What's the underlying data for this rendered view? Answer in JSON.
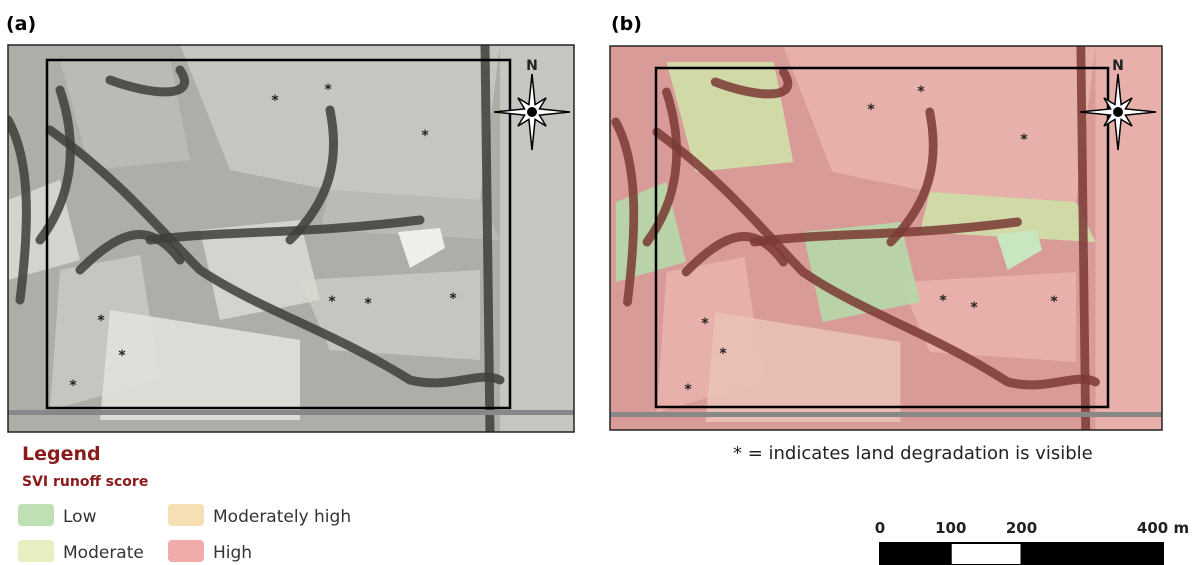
{
  "panels": [
    {
      "label": "(a)"
    },
    {
      "label": "(b)"
    }
  ],
  "north_label": "N",
  "degradation_marker": "*",
  "legend": {
    "title": "Legend",
    "subtitle": "SVI runoff score",
    "items": [
      {
        "label": "Low",
        "color": "#bfe0b5"
      },
      {
        "label": "Moderately high",
        "color": "#f6dfb3"
      },
      {
        "label": "Moderate",
        "color": "#e6efbf"
      },
      {
        "label": "High",
        "color": "#f2abab"
      }
    ]
  },
  "note": "* = indicates land degradation is visible",
  "scale_bar": {
    "ticks": [
      0,
      100,
      200,
      {
        "value": 400,
        "label": "400 m"
      }
    ]
  }
}
